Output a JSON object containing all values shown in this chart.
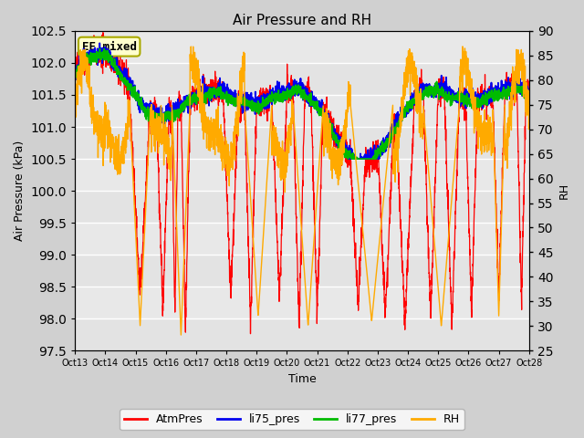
{
  "title": "Air Pressure and RH",
  "ylabel_left": "Air Pressure (kPa)",
  "ylabel_right": "RH",
  "xlabel": "Time",
  "annotation": "EE_mixed",
  "ylim_left": [
    97.5,
    102.5
  ],
  "ylim_right": [
    25,
    90
  ],
  "yticks_left": [
    97.5,
    98.0,
    98.5,
    99.0,
    99.5,
    100.0,
    100.5,
    101.0,
    101.5,
    102.0,
    102.5
  ],
  "yticks_right": [
    25,
    30,
    35,
    40,
    45,
    50,
    55,
    60,
    65,
    70,
    75,
    80,
    85,
    90
  ],
  "xtick_labels": [
    "Oct 13",
    "Oct 14",
    "Oct 15",
    "Oct 16",
    "Oct 17",
    "Oct 18",
    "Oct 19",
    "Oct 20",
    "Oct 21",
    "Oct 22",
    "Oct 23",
    "Oct 24",
    "Oct 25",
    "Oct 26",
    "Oct 27",
    "Oct 28"
  ],
  "n_days": 15,
  "colors": {
    "AtmPres": "#ff0000",
    "li75_pres": "#0000ee",
    "li77_pres": "#00bb00",
    "RH": "#ffaa00"
  },
  "fig_bg": "#d0d0d0",
  "plot_bg": "#e8e8e8",
  "grid_color": "#ffffff",
  "annotation_bg": "#ffffcc",
  "annotation_border": "#aaaa00",
  "lw_atm": 0.9,
  "lw_li": 1.3,
  "lw_rh": 1.0
}
